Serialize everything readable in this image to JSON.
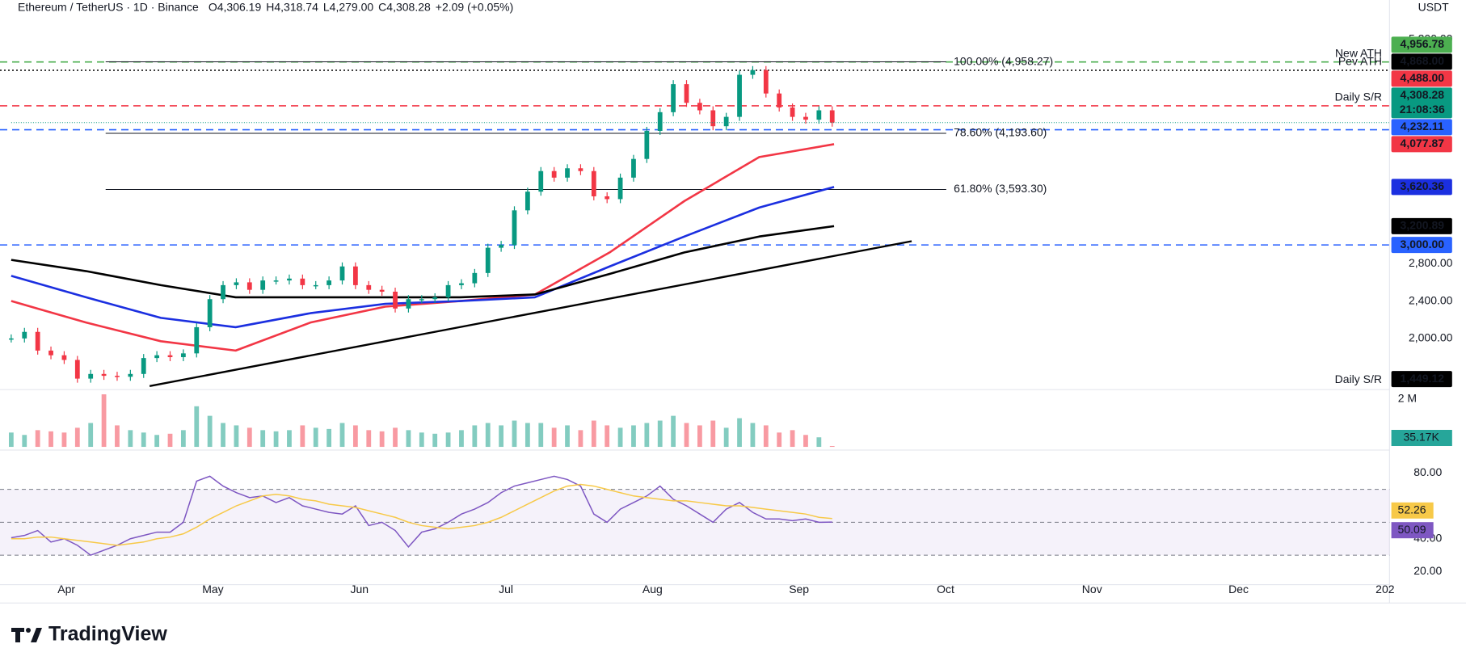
{
  "header": {
    "title": "Ethereum / TetherUS · 1D · Binance",
    "ohlc": [
      {
        "key": "O",
        "value": 4306.19,
        "label": "4,306.19"
      },
      {
        "key": "H",
        "value": 4318.74,
        "label": "4,318.74"
      },
      {
        "key": "L",
        "value": 4279.0,
        "label": "4,279.00"
      },
      {
        "key": "C",
        "value": 4308.28,
        "label": "4,308.28"
      }
    ],
    "change": {
      "value": 2.09,
      "label": "+2.09 (+0.05%)"
    },
    "currency": "USDT"
  },
  "footer": {
    "brand": "TradingView"
  },
  "chart_data": {
    "type": "candlestick",
    "ylim": [
      1470,
      5620
    ],
    "yticks": [
      {
        "value": 5200,
        "label": "5,200.00"
      },
      {
        "value": 2800,
        "label": "2,800.00"
      },
      {
        "value": 2400,
        "label": "2,400.00"
      },
      {
        "value": 2000,
        "label": "2,000.00"
      }
    ],
    "xticks": [
      "Apr",
      "May",
      "Jun",
      "Jul",
      "Aug",
      "Sep",
      "Oct",
      "Nov",
      "Dec",
      "202"
    ],
    "series": [
      {
        "color_up": "#089981",
        "color_down": "#f23645",
        "values": [
          2000,
          2070,
          1870,
          1820,
          1770,
          1570,
          1620,
          1600,
          1590,
          1620,
          1790,
          1820,
          1800,
          1840,
          2120,
          2420,
          2570,
          2600,
          2520,
          2620,
          2620,
          2640,
          2570,
          2570,
          2620,
          2770,
          2570,
          2520,
          2500,
          2320,
          2420,
          2420,
          2440,
          2570,
          2590,
          2700,
          2970,
          3000,
          3370,
          3570,
          3790,
          3720,
          3820,
          3790,
          3520,
          3490,
          3720,
          3920,
          4220,
          4420,
          4720,
          4520,
          4440,
          4270,
          4370,
          4820,
          4870,
          4620,
          4470,
          4370,
          4340,
          4440,
          4308.28
        ],
        "last_label": "4,308.28",
        "countdown": "21:08:36"
      }
    ],
    "moving_averages": [
      {
        "color": "#f23645",
        "values": [
          2400,
          2170,
          1970,
          1870,
          2170,
          2340,
          2400,
          2470,
          2920,
          3470,
          3940,
          4077.87
        ],
        "last_label": "4,077.87"
      },
      {
        "color": "#1b2fe0",
        "values": [
          2670,
          2440,
          2220,
          2120,
          2270,
          2370,
          2400,
          2440,
          2770,
          3090,
          3400,
          3620.36
        ],
        "last_label": "3,620.36"
      },
      {
        "color": "#000000",
        "values": [
          2840,
          2720,
          2570,
          2440,
          2440,
          2440,
          2440,
          2470,
          2690,
          2920,
          3090,
          3200.89
        ],
        "last_label": "3,200.89"
      }
    ],
    "trendline": {
      "color": "#000000",
      "values": [
        1490,
        3040
      ]
    },
    "levels": [
      {
        "name": "New ATH",
        "value": 4956.78,
        "value_label": "4,956.78",
        "color": "#4caf50",
        "style": "dashed"
      },
      {
        "name": "Pev ATH",
        "value": 4868,
        "value_label": "4,868.00",
        "color": "#000000",
        "style": "dotted"
      },
      {
        "name": "Daily S/R",
        "value": 4488,
        "value_label": "4,488.00",
        "color": "#f23645",
        "style": "dashed"
      },
      {
        "value": 4232.11,
        "value_label": "4,232.11",
        "color": "#2962ff",
        "style": "dashed"
      },
      {
        "value": 3000,
        "value_label": "3,000.00",
        "color": "#2962ff",
        "style": "dashed"
      },
      {
        "name": "Daily S/R",
        "value": 1449.12,
        "value_label": "1,449.12",
        "color": "#000000",
        "style": "none"
      }
    ],
    "fibonacci": [
      {
        "value": 4958.27,
        "label": "100.00% (4,958.27)"
      },
      {
        "value": 4193.6,
        "label": "78.60% (4,193.60)"
      },
      {
        "value": 3593.3,
        "label": "61.80% (3,593.30)"
      }
    ],
    "volume": {
      "ylim": [
        0,
        2270000
      ],
      "yticks": [
        {
          "value": 2000000,
          "label": "2 M"
        }
      ],
      "values": [
        600000,
        500000,
        700000,
        650000,
        600000,
        800000,
        1000000,
        2200000,
        900000,
        700000,
        600000,
        500000,
        550000,
        700000,
        1700000,
        1300000,
        1000000,
        900000,
        800000,
        700000,
        650000,
        700000,
        900000,
        800000,
        750000,
        1000000,
        900000,
        700000,
        650000,
        800000,
        700000,
        600000,
        550000,
        600000,
        700000,
        900000,
        1000000,
        900000,
        1100000,
        1000000,
        1000000,
        800000,
        900000,
        700000,
        1100000,
        900000,
        800000,
        900000,
        1000000,
        1100000,
        1300000,
        1000000,
        900000,
        1100000,
        800000,
        1200000,
        1000000,
        900000,
        600000,
        700000,
        500000,
        400000,
        35170
      ],
      "last_label": "35.17K"
    },
    "rsi": {
      "ylim": [
        14,
        93
      ],
      "yticks": [
        {
          "value": 80,
          "label": "80.00"
        },
        {
          "value": 40,
          "label": "40.00"
        },
        {
          "value": 20,
          "label": "20.00"
        }
      ],
      "bands": [
        70,
        50,
        30
      ],
      "series": [
        {
          "color": "#7e57c2",
          "values": [
            40.6,
            42,
            45,
            38,
            40,
            36,
            30,
            33,
            36,
            40,
            42,
            44,
            44,
            50,
            75,
            78,
            72,
            68,
            65,
            66,
            62,
            65,
            60,
            58,
            56,
            55,
            60,
            48,
            50,
            45,
            35,
            44,
            46,
            50,
            55,
            58,
            62,
            68,
            72,
            74,
            76,
            78,
            76,
            72,
            55,
            50,
            58,
            62,
            66,
            72,
            64,
            60,
            55,
            50,
            58,
            62,
            56,
            52,
            52,
            51,
            52,
            50,
            50.09
          ],
          "last_label": "50.09"
        },
        {
          "color": "#f7c948",
          "values": [
            40,
            40,
            41,
            41,
            40,
            39,
            38,
            37,
            36,
            37,
            38,
            40,
            41,
            43,
            47,
            52,
            56,
            60,
            63,
            66,
            67,
            66,
            64,
            63,
            61,
            60,
            59,
            57,
            55,
            53,
            50,
            48,
            47,
            46,
            47,
            48,
            50,
            53,
            57,
            61,
            65,
            69,
            72,
            73,
            72,
            70,
            68,
            66,
            65,
            64,
            63,
            63,
            62,
            61,
            60,
            60,
            59,
            58,
            57,
            56,
            55,
            53,
            52.26
          ],
          "last_label": "52.26"
        }
      ]
    }
  }
}
